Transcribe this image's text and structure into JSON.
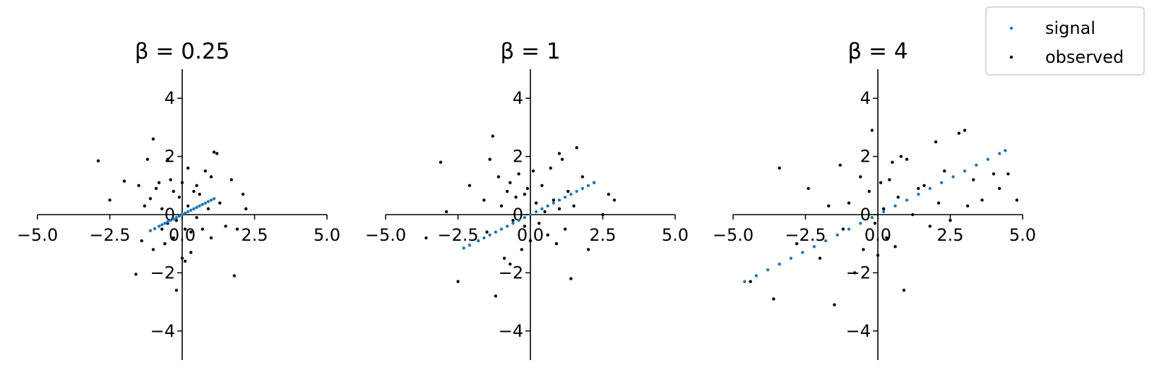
{
  "chart_data": [
    {
      "type": "scatter",
      "title": "β = 0.25",
      "beta": 0.25,
      "xlim": [
        -5,
        5
      ],
      "ylim": [
        -5,
        5
      ],
      "xticks": [
        -5.0,
        -2.5,
        0.0,
        2.5,
        5.0
      ],
      "xtick_labels": [
        "−5.0",
        "−2.5",
        "0.0",
        "2.5",
        "5.0"
      ],
      "yticks": [
        -4,
        -2,
        0,
        2,
        4
      ],
      "ytick_labels": [
        "−4",
        "−2",
        "0",
        "2",
        "4"
      ],
      "grid": false,
      "series": [
        {
          "name": "signal",
          "color": "#1f77b4",
          "x": [
            -1.1,
            -0.95,
            -0.8,
            -0.7,
            -0.6,
            -0.5,
            -0.4,
            -0.3,
            -0.2,
            -0.1,
            0.0,
            0.1,
            0.2,
            0.3,
            0.4,
            0.5,
            0.6,
            0.7,
            0.8,
            0.9,
            1.0,
            1.1
          ],
          "y": [
            -0.55,
            -0.48,
            -0.4,
            -0.35,
            -0.3,
            -0.25,
            -0.2,
            -0.15,
            -0.1,
            -0.05,
            0.0,
            0.05,
            0.1,
            0.15,
            0.2,
            0.25,
            0.3,
            0.35,
            0.4,
            0.45,
            0.5,
            0.55
          ]
        },
        {
          "name": "observed",
          "color": "#000000",
          "x": [
            -2.9,
            -2.5,
            -2.0,
            -1.6,
            -1.5,
            -1.4,
            -1.3,
            -1.2,
            -1.1,
            -1.0,
            -1.0,
            -0.9,
            -0.8,
            -0.7,
            -0.7,
            -0.6,
            -0.5,
            -0.5,
            -0.4,
            -0.3,
            -0.3,
            -0.2,
            -0.2,
            -0.1,
            0.0,
            0.0,
            0.1,
            0.1,
            0.2,
            0.2,
            0.3,
            0.3,
            0.4,
            0.5,
            0.5,
            0.6,
            0.7,
            0.8,
            0.9,
            1.0,
            1.0,
            1.1,
            1.2,
            1.3,
            1.5,
            1.7,
            1.8,
            1.9,
            2.1,
            2.2
          ],
          "y": [
            1.85,
            0.5,
            1.15,
            -2.05,
            1.0,
            -0.9,
            0.3,
            1.9,
            0.55,
            -1.2,
            2.6,
            0.9,
            1.1,
            0.2,
            -0.5,
            -1.0,
            1.9,
            -0.3,
            1.2,
            0.8,
            -0.8,
            -0.2,
            -2.6,
            0.6,
            -1.5,
            1.1,
            -0.5,
            -1.6,
            1.6,
            0.3,
            -0.6,
            -1.3,
            0.8,
            1.0,
            -0.1,
            0.7,
            -0.5,
            1.5,
            0.2,
            1.3,
            -0.8,
            2.15,
            2.1,
            0.4,
            -0.4,
            1.2,
            -2.1,
            -0.5,
            0.7,
            0.2
          ]
        }
      ]
    },
    {
      "type": "scatter",
      "title": "β = 1",
      "beta": 1,
      "xlim": [
        -5,
        5
      ],
      "ylim": [
        -5,
        5
      ],
      "xticks": [
        -5.0,
        -2.5,
        0.0,
        2.5,
        5.0
      ],
      "xtick_labels": [
        "−5.0",
        "−2.5",
        "0.0",
        "2.5",
        "5.0"
      ],
      "yticks": [
        -4,
        -2,
        0,
        2,
        4
      ],
      "ytick_labels": [
        "−4",
        "−2",
        "0",
        "2",
        "4"
      ],
      "grid": false,
      "series": [
        {
          "name": "signal",
          "color": "#1f77b4",
          "x": [
            -2.3,
            -2.1,
            -1.8,
            -1.6,
            -1.4,
            -1.2,
            -1.0,
            -0.8,
            -0.6,
            -0.4,
            -0.2,
            0.0,
            0.2,
            0.4,
            0.6,
            0.8,
            1.0,
            1.2,
            1.4,
            1.6,
            1.8,
            2.0,
            2.2
          ],
          "y": [
            -1.15,
            -1.05,
            -0.9,
            -0.8,
            -0.7,
            -0.6,
            -0.5,
            -0.4,
            -0.3,
            -0.2,
            -0.1,
            0.0,
            0.1,
            0.2,
            0.3,
            0.4,
            0.5,
            0.6,
            0.7,
            0.8,
            0.9,
            1.0,
            1.1
          ]
        },
        {
          "name": "observed",
          "color": "#000000",
          "x": [
            -3.6,
            -3.1,
            -2.9,
            -2.5,
            -2.1,
            -1.6,
            -1.5,
            -1.4,
            -1.3,
            -1.2,
            -1.1,
            -1.0,
            -0.9,
            -0.8,
            -0.7,
            -0.7,
            -0.6,
            -0.5,
            -0.4,
            -0.3,
            -0.2,
            -0.2,
            -0.1,
            0.0,
            0.1,
            0.2,
            0.3,
            0.4,
            0.5,
            0.6,
            0.7,
            0.8,
            0.9,
            1.0,
            1.0,
            1.1,
            1.2,
            1.3,
            1.4,
            1.5,
            1.6,
            1.8,
            2.0,
            2.2,
            2.5,
            2.7,
            2.9
          ],
          "y": [
            -0.8,
            1.8,
            0.1,
            -2.3,
            1.0,
            0.5,
            -0.6,
            1.9,
            2.7,
            -2.8,
            1.3,
            0.3,
            -1.5,
            0.8,
            -1.7,
            1.1,
            -0.2,
            0.6,
            1.4,
            -1.2,
            0.7,
            -0.4,
            0.9,
            -0.9,
            1.5,
            0.4,
            -0.3,
            1.0,
            0.1,
            -0.7,
            1.6,
            0.5,
            -1.0,
            2.1,
            0.2,
            1.9,
            -0.5,
            0.8,
            -2.2,
            0.3,
            2.3,
            1.3,
            -1.2,
            1.1,
            0.0,
            0.7,
            0.5
          ]
        }
      ]
    },
    {
      "type": "scatter",
      "title": "β = 4",
      "beta": 4,
      "xlim": [
        -5,
        5
      ],
      "ylim": [
        -5,
        5
      ],
      "xticks": [
        -5.0,
        -2.5,
        0.0,
        2.5,
        5.0
      ],
      "xtick_labels": [
        "−5.0",
        "−2.5",
        "0.0",
        "2.5",
        "5.0"
      ],
      "yticks": [
        -4,
        -2,
        0,
        2,
        4
      ],
      "ytick_labels": [
        "−4",
        "−2",
        "0",
        "2",
        "4"
      ],
      "grid": false,
      "series": [
        {
          "name": "signal",
          "color": "#1f77b4",
          "x": [
            -4.6,
            -4.2,
            -3.8,
            -3.4,
            -3.0,
            -2.6,
            -2.2,
            -1.8,
            -1.4,
            -1.0,
            -0.6,
            -0.2,
            0.2,
            0.6,
            1.0,
            1.4,
            1.8,
            2.2,
            2.6,
            3.0,
            3.4,
            3.8,
            4.2,
            4.4
          ],
          "y": [
            -2.3,
            -2.1,
            -1.9,
            -1.7,
            -1.5,
            -1.3,
            -1.1,
            -0.9,
            -0.7,
            -0.5,
            -0.3,
            -0.1,
            0.1,
            0.3,
            0.5,
            0.7,
            0.9,
            1.1,
            1.3,
            1.5,
            1.7,
            1.9,
            2.1,
            2.2
          ]
        },
        {
          "name": "observed",
          "color": "#000000",
          "x": [
            -4.4,
            -3.6,
            -3.4,
            -2.8,
            -2.4,
            -2.0,
            -1.7,
            -1.5,
            -1.3,
            -1.2,
            -1.0,
            -0.8,
            -0.6,
            -0.5,
            -0.3,
            -0.2,
            -0.1,
            0.0,
            0.1,
            0.2,
            0.3,
            0.4,
            0.5,
            0.6,
            0.7,
            0.8,
            0.9,
            1.0,
            1.2,
            1.4,
            1.6,
            1.8,
            2.0,
            2.1,
            2.3,
            2.5,
            2.8,
            3.0,
            3.1,
            3.3,
            3.6,
            4.0,
            4.2,
            4.5,
            4.8
          ],
          "y": [
            -2.3,
            -2.9,
            1.6,
            -1.0,
            0.9,
            -1.5,
            0.3,
            -3.1,
            1.7,
            -0.5,
            0.4,
            -2.0,
            1.3,
            -1.2,
            0.8,
            2.9,
            -0.3,
            -1.4,
            1.1,
            0.2,
            -0.8,
            1.2,
            1.8,
            -1.1,
            0.6,
            2.0,
            -2.6,
            1.9,
            0.0,
            0.9,
            1.0,
            -0.4,
            2.5,
            0.4,
            1.5,
            -0.2,
            2.8,
            2.9,
            0.3,
            1.2,
            0.5,
            1.4,
            0.9,
            1.4,
            0.5
          ]
        }
      ]
    }
  ],
  "legend": {
    "location": "upper-right",
    "entries": [
      {
        "label": "signal",
        "color": "#1f77b4"
      },
      {
        "label": "observed",
        "color": "#000000"
      }
    ]
  }
}
